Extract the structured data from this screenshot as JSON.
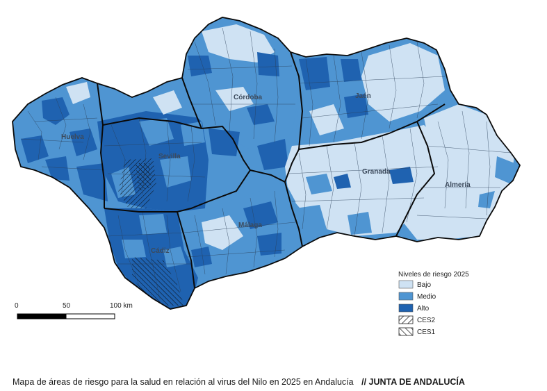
{
  "map": {
    "provinces": [
      {
        "id": "huelva",
        "label": "Huelva"
      },
      {
        "id": "sevilla",
        "label": "Sevilla"
      },
      {
        "id": "cordoba",
        "label": "Córdoba"
      },
      {
        "id": "jaen",
        "label": "Jaén"
      },
      {
        "id": "granada",
        "label": "Granada"
      },
      {
        "id": "almeria",
        "label": "Almería"
      },
      {
        "id": "malaga",
        "label": "Málaga"
      },
      {
        "id": "cadiz",
        "label": "Cádiz"
      }
    ],
    "colors": {
      "bajo": "#cfe2f3",
      "medio": "#4f95d2",
      "alto": "#1f62b0",
      "border": "#0a0a0a",
      "municipal_line": "#2a3f58"
    }
  },
  "legend": {
    "title": "Niveles de riesgo 2025",
    "items": [
      {
        "label": "Bajo",
        "kind": "fill",
        "color": "#cfe2f3"
      },
      {
        "label": "Medio",
        "kind": "fill",
        "color": "#4f95d2"
      },
      {
        "label": "Alto",
        "kind": "fill",
        "color": "#1f62b0"
      },
      {
        "label": "CES2",
        "kind": "hatch-right"
      },
      {
        "label": "CES1",
        "kind": "hatch-left"
      }
    ]
  },
  "scale": {
    "ticks": [
      "0",
      "50",
      "100 km"
    ]
  },
  "caption": {
    "text": "Mapa de áreas de riesgo para la salud en relación al virus del Nilo en 2025 en Andalucía",
    "credit": "// JUNTA DE ANDALUCÍA"
  }
}
